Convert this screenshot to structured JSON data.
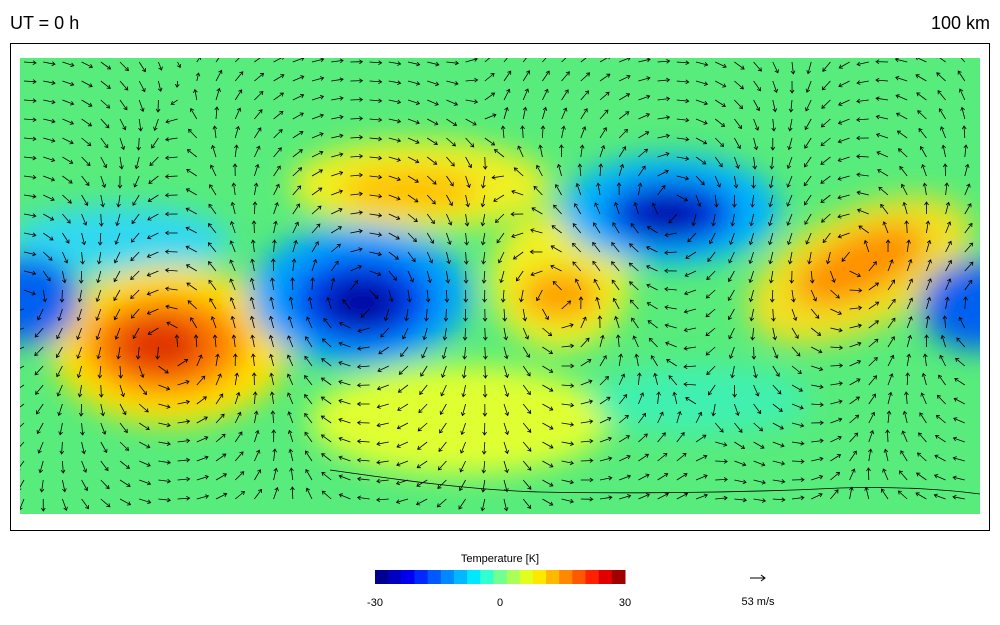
{
  "header": {
    "title": "UT =  0 h",
    "altitude": "100 km"
  },
  "colorbar": {
    "title": "Temperature [K]",
    "min": -30,
    "max": 30,
    "ticks": [
      -30,
      0,
      30
    ],
    "colors": [
      "#000090",
      "#0000c0",
      "#0000f0",
      "#0028ff",
      "#0058ff",
      "#0088ff",
      "#00b8ff",
      "#00e8ff",
      "#30ffd0",
      "#70ff90",
      "#a8ff58",
      "#e0ff20",
      "#ffe800",
      "#ffb800",
      "#ff8800",
      "#ff5800",
      "#ff2000",
      "#e00000",
      "#a00000"
    ]
  },
  "vector_key": {
    "label": "53 m/s"
  }
}
